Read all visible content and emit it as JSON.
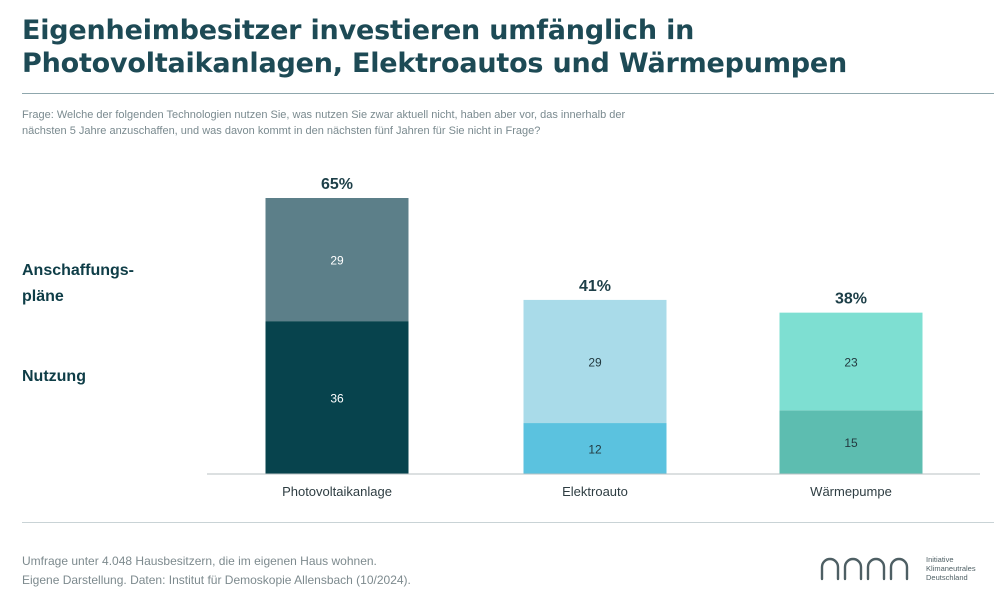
{
  "title_lines": [
    "Eigenheimbesitzer investieren umfänglich in",
    "Photovoltaikanlagen, Elektroautos und Wärmepumpen"
  ],
  "question_lines": [
    "Frage: Welche der folgenden Technologien nutzen Sie, was nutzen Sie zwar aktuell nicht, haben aber vor, das innerhalb der",
    "nächsten 5 Jahre anzuschaffen, und was davon kommt in den nächsten fünf Jahren für Sie nicht in Frage?"
  ],
  "chart_data": {
    "type": "bar",
    "stacked": true,
    "categories": [
      "Photovoltaikanlage",
      "Elektroauto",
      "Wärmepumpe"
    ],
    "series": [
      {
        "name": "Nutzung",
        "values": [
          36,
          12,
          15
        ],
        "colors": [
          "#07434d",
          "#5bc2df",
          "#5dbdb0"
        ]
      },
      {
        "name": "Anschaffungs- pläne",
        "values": [
          29,
          29,
          23
        ],
        "colors": [
          "#5c7f89",
          "#a9dbe9",
          "#7edfd2"
        ]
      }
    ],
    "totals": [
      "65%",
      "41%",
      "38%"
    ],
    "row_labels": {
      "upper": [
        "Anschaffungs-",
        "pläne"
      ],
      "lower": "Nutzung"
    },
    "ylim": [
      0,
      65
    ],
    "grid": false,
    "legend": "left"
  },
  "footer": {
    "line1": "Umfrage unter 4.048 Hausbesitzern, die im eigenen Haus wohnen.",
    "line2": "Eigene Darstellung. Daten: Institut für Demoskopie Allensbach (10/2024)."
  },
  "logo": {
    "mark_text": "ΩΩΩΩ",
    "text_lines": [
      "Initiative",
      "Klimaneutrales",
      "Deutschland"
    ],
    "color": "#4e5f64"
  }
}
